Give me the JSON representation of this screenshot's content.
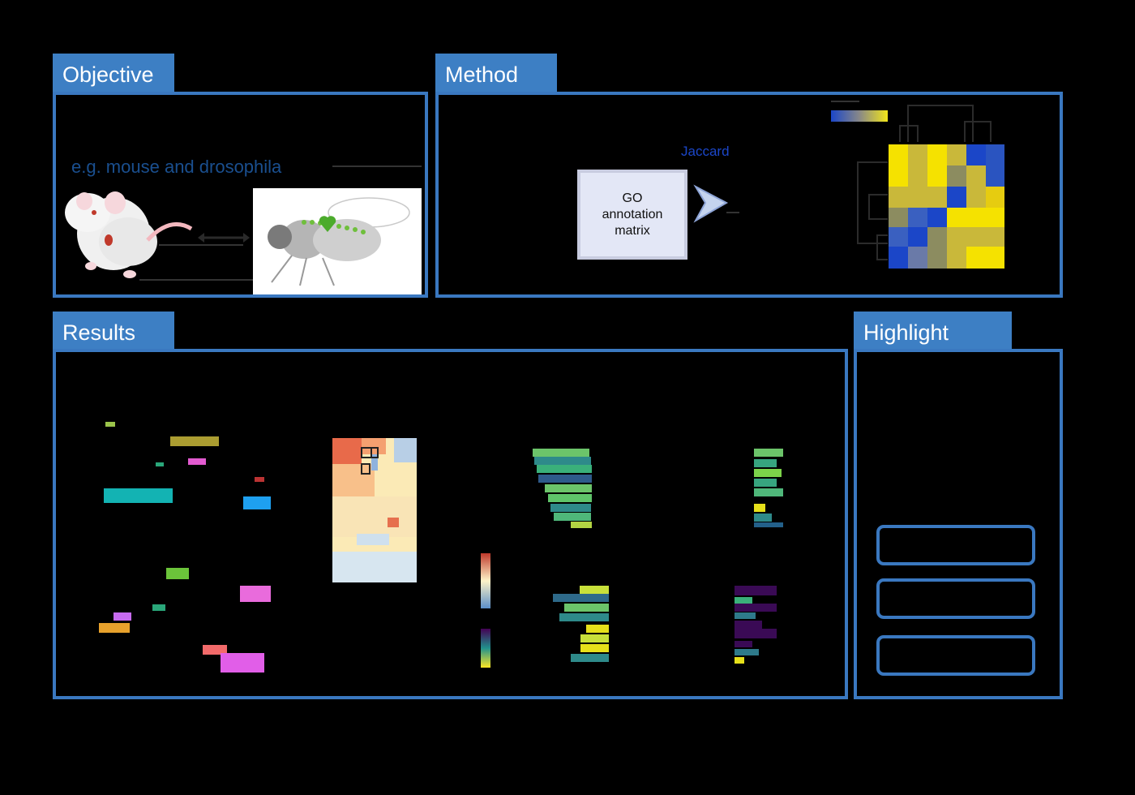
{
  "sections": {
    "objective": "Objective",
    "method": "Method",
    "results": "Results",
    "highlight": "Highlight"
  },
  "objective": {
    "species_caption": "e.g. mouse and drosophila"
  },
  "method": {
    "go_box": [
      "GO",
      "annotation",
      "matrix"
    ],
    "arrow_label": "Jaccard"
  },
  "colors": {
    "accent": "#3d7fc4",
    "border": "#3a78c0",
    "heatmap_yellow": "#f2e61a",
    "heatmap_blue": "#1b46c8"
  }
}
